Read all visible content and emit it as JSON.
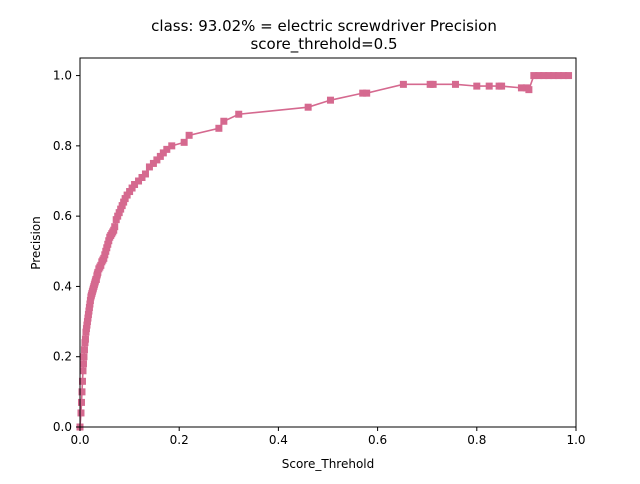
{
  "chart_data": {
    "type": "line",
    "title": "class: 93.02% = electric screwdriver Precision",
    "subtitle": "score_threhold=0.5",
    "xlabel": "Score_Threhold",
    "ylabel": "Precision",
    "xlim": [
      0.0,
      1.0
    ],
    "ylim": [
      0.0,
      1.05
    ],
    "x_ticks": [
      0.0,
      0.2,
      0.4,
      0.6,
      0.8,
      1.0
    ],
    "x_tick_labels": [
      "0.0",
      "0.2",
      "0.4",
      "0.6",
      "0.8",
      "1.0"
    ],
    "y_ticks": [
      0.0,
      0.2,
      0.4,
      0.6,
      0.8,
      1.0
    ],
    "y_tick_labels": [
      "0.0",
      "0.2",
      "0.4",
      "0.6",
      "0.8",
      "1.0"
    ],
    "grid": false,
    "legend": false,
    "marker": "square",
    "color": "#d5698f",
    "series": [
      {
        "x": [
          0.0,
          0.002,
          0.003,
          0.004,
          0.005,
          0.006,
          0.007,
          0.008,
          0.009,
          0.01,
          0.011,
          0.012,
          0.013,
          0.014,
          0.015,
          0.016,
          0.017,
          0.018,
          0.019,
          0.02,
          0.021,
          0.022,
          0.023,
          0.024,
          0.025,
          0.026,
          0.027,
          0.028,
          0.029,
          0.03,
          0.031,
          0.032,
          0.033,
          0.034,
          0.035,
          0.036,
          0.038,
          0.04,
          0.042,
          0.044,
          0.046,
          0.048,
          0.05,
          0.052,
          0.054,
          0.056,
          0.058,
          0.06,
          0.062,
          0.064,
          0.066,
          0.068,
          0.07,
          0.073,
          0.076,
          0.079,
          0.082,
          0.085,
          0.088,
          0.091,
          0.095,
          0.1,
          0.105,
          0.11,
          0.118,
          0.125,
          0.132,
          0.14,
          0.148,
          0.155,
          0.162,
          0.168,
          0.175,
          0.185,
          0.21,
          0.22,
          0.28,
          0.29,
          0.32,
          0.46,
          0.505,
          0.57,
          0.578,
          0.652,
          0.706,
          0.712,
          0.757,
          0.8,
          0.825,
          0.845,
          0.85,
          0.89,
          0.9,
          0.905,
          0.915,
          0.925,
          0.935,
          0.945,
          0.955,
          0.965,
          0.975,
          0.985
        ],
        "y": [
          0.0,
          0.04,
          0.07,
          0.1,
          0.13,
          0.16,
          0.18,
          0.2,
          0.22,
          0.24,
          0.25,
          0.27,
          0.28,
          0.29,
          0.3,
          0.31,
          0.32,
          0.33,
          0.34,
          0.35,
          0.36,
          0.37,
          0.375,
          0.38,
          0.385,
          0.39,
          0.395,
          0.4,
          0.405,
          0.41,
          0.415,
          0.42,
          0.42,
          0.43,
          0.435,
          0.44,
          0.45,
          0.455,
          0.46,
          0.47,
          0.475,
          0.48,
          0.49,
          0.5,
          0.51,
          0.52,
          0.53,
          0.54,
          0.545,
          0.55,
          0.555,
          0.56,
          0.57,
          0.59,
          0.6,
          0.61,
          0.62,
          0.63,
          0.64,
          0.65,
          0.66,
          0.67,
          0.68,
          0.69,
          0.7,
          0.71,
          0.72,
          0.74,
          0.75,
          0.76,
          0.77,
          0.78,
          0.79,
          0.8,
          0.81,
          0.83,
          0.85,
          0.87,
          0.89,
          0.91,
          0.93,
          0.95,
          0.95,
          0.975,
          0.975,
          0.975,
          0.975,
          0.97,
          0.97,
          0.97,
          0.97,
          0.965,
          0.965,
          0.96,
          1.0,
          1.0,
          1.0,
          1.0,
          1.0,
          1.0,
          1.0,
          1.0
        ]
      }
    ]
  }
}
